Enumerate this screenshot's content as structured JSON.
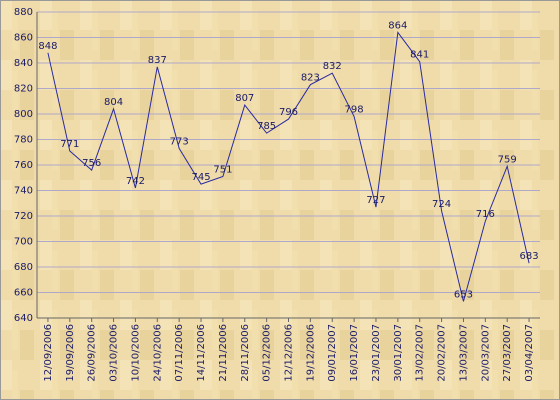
{
  "chart_data": {
    "type": "line",
    "categories": [
      "12/09/2006",
      "19/09/2006",
      "26/09/2006",
      "03/10/2006",
      "10/10/2006",
      "24/10/2006",
      "07/11/2006",
      "14/11/2006",
      "21/11/2006",
      "28/11/2006",
      "05/12/2006",
      "12/12/2006",
      "19/12/2006",
      "09/01/2007",
      "16/01/2007",
      "23/01/2007",
      "30/01/2007",
      "13/02/2007",
      "20/02/2007",
      "13/03/2007",
      "20/03/2007",
      "27/03/2007",
      "03/04/2007"
    ],
    "values": [
      848,
      771,
      756,
      804,
      742,
      837,
      773,
      745,
      751,
      807,
      785,
      796,
      823,
      832,
      798,
      727,
      864,
      841,
      724,
      653,
      716,
      759,
      683
    ],
    "color": "#2a2aa0",
    "ylim": [
      640,
      880
    ],
    "yticks": [
      640,
      660,
      680,
      700,
      720,
      740,
      760,
      780,
      800,
      820,
      840,
      860,
      880
    ],
    "grid": true
  }
}
